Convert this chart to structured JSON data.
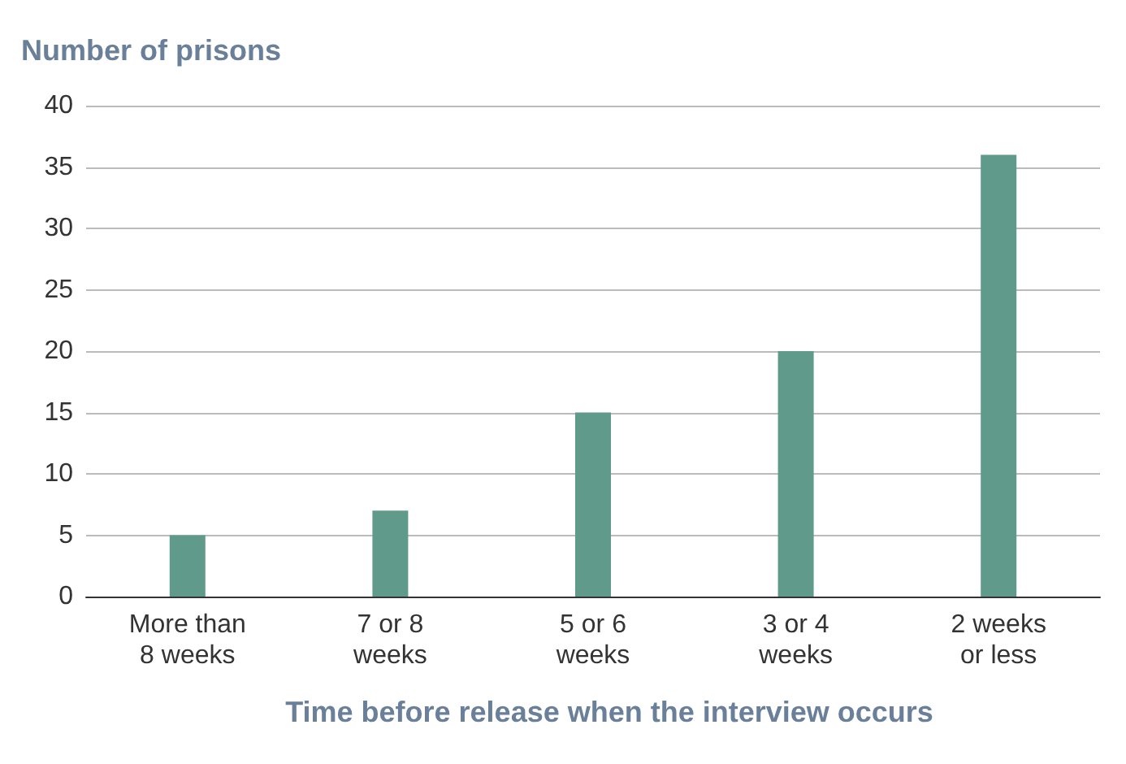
{
  "chart_data": {
    "type": "bar",
    "ylabel": "Number of prisons",
    "xlabel": "Time before release when the interview occurs",
    "categories": [
      "More than\n8 weeks",
      "7 or 8\nweeks",
      "5 or 6\nweeks",
      "3 or 4\nweeks",
      "2 weeks\nor less"
    ],
    "values": [
      5,
      7,
      15,
      20,
      36
    ],
    "color": "#5f9a8b",
    "ylim": [
      0,
      40
    ],
    "yticks": [
      0,
      5,
      10,
      15,
      20,
      25,
      30,
      35,
      40
    ],
    "grid": "y"
  }
}
